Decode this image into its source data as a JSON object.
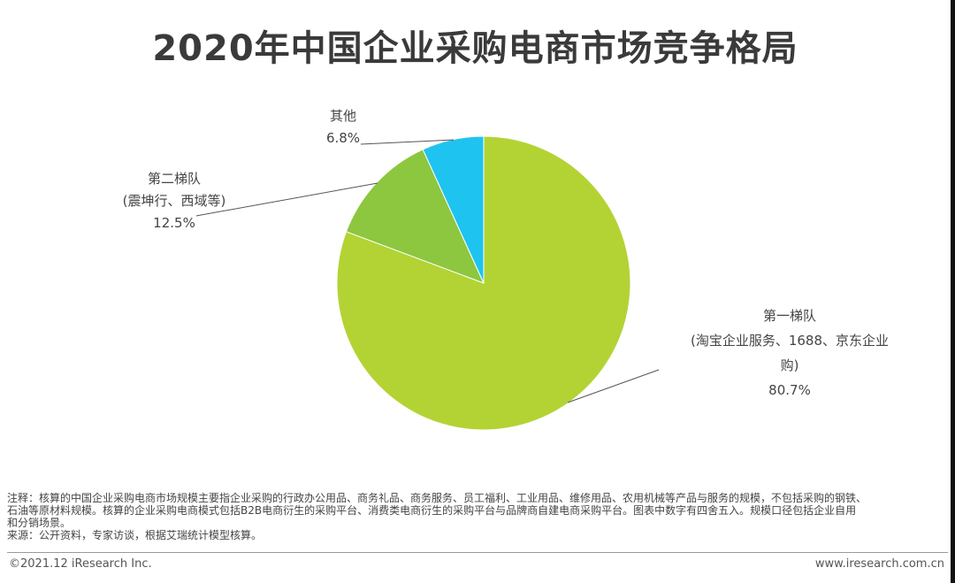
{
  "header": {
    "title": "2020年中国企业采购电商市场竞争格局"
  },
  "chart_data": {
    "type": "pie",
    "title": "2020年中国企业采购电商市场竞争格局",
    "start": "12 o'clock, clockwise",
    "slices": [
      {
        "label_lines": [
          "第一梯队",
          "(淘宝企业服务、1688、京东企业",
          "购)"
        ],
        "value": 80.7,
        "value_label": "80.7%",
        "color": "#b3d334"
      },
      {
        "label_lines": [
          "第二梯队",
          "(震坤行、西域等)"
        ],
        "value": 12.5,
        "value_label": "12.5%",
        "color": "#8dc63f"
      },
      {
        "label_lines": [
          "其他"
        ],
        "value": 6.8,
        "value_label": "6.8%",
        "color": "#1fc3f0"
      }
    ]
  },
  "notes": {
    "line1": "注释：核算的中国企业采购电商市场规模主要指企业采购的行政办公用品、商务礼品、商务服务、员工福利、工业用品、维修用品、农用机械等产品与服务的规模，不包括采购的钢铁、",
    "line2": "石油等原材料规模。核算的企业采购电商模式包括B2B电商衍生的采购平台、消费类电商衍生的采购平台与品牌商自建电商采购平台。图表中数字有四舍五入。规模口径包括企业自用",
    "line3": "和分销场景。",
    "line4": "来源：公开资料，专家访谈，根据艾瑞统计模型核算。"
  },
  "footer": {
    "copyright": "©2021.12 iResearch Inc.",
    "website": "www.iresearch.com.cn"
  }
}
